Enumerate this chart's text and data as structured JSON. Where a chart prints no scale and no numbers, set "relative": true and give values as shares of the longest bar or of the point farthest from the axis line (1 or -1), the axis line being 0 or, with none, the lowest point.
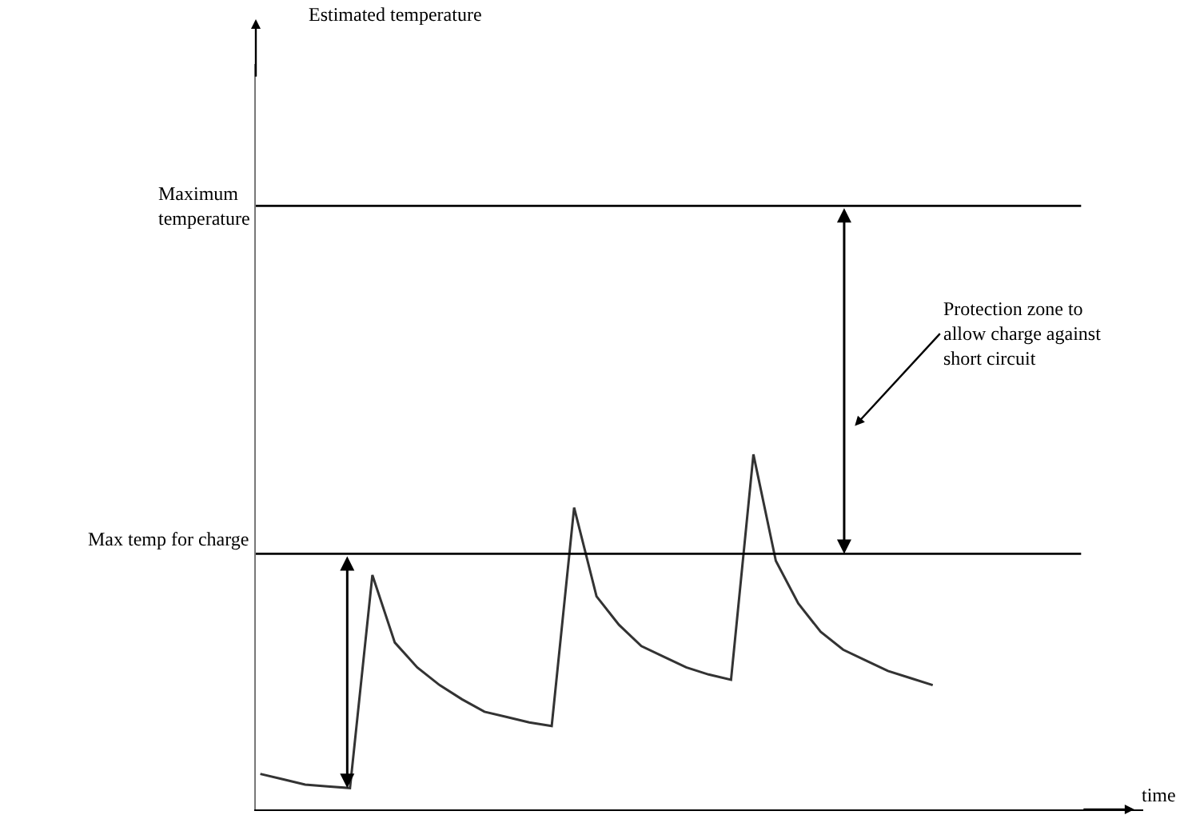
{
  "chart_data": {
    "type": "line",
    "relative": true,
    "categories": [
      null,
      null,
      null,
      null,
      null,
      null,
      null,
      null,
      null,
      null,
      null,
      null,
      null,
      null,
      null,
      null,
      null,
      null,
      null,
      null,
      null,
      null,
      null,
      null,
      null,
      null,
      null,
      null,
      null,
      null,
      null
    ],
    "series": [
      {
        "color": "#333333",
        "values": [
          0.1,
          0.085,
          0.07,
          0.065,
          0.06,
          0.66,
          0.47,
          0.4,
          0.35,
          0.31,
          0.275,
          0.26,
          0.245,
          0.235,
          0.85,
          0.6,
          0.52,
          0.46,
          0.43,
          0.4,
          0.38,
          0.365,
          1.0,
          0.7,
          0.58,
          0.5,
          0.45,
          0.42,
          0.39,
          0.37,
          0.35
        ]
      }
    ],
    "ref_lines": [
      {
        "axis": "y",
        "value": 1.7,
        "label": "Maximum temperature",
        "color": "#000000"
      },
      {
        "axis": "y",
        "value": 0.72,
        "label": "Max temp for charge",
        "color": "#000000"
      }
    ],
    "annotations": [
      "Estimated temperature",
      "time",
      "Protection zone to allow charge against short circuit"
    ],
    "line_style": "solid",
    "marker": "none"
  }
}
